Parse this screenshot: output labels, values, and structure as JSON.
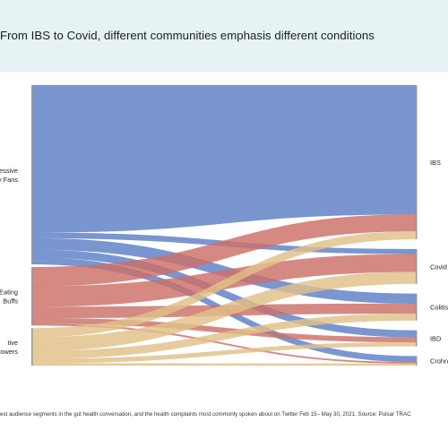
{
  "header": {
    "title": "From IBS to Covid, different communities emphasis different conditions"
  },
  "caption": "est audience segments in the gut health conversation, and the health complaints most commonly spoken about on Twitter Feb 15– May 30, 2021. Source: Pulsar TRAC",
  "colors": {
    "header_bg": "#e6f2f4",
    "node": "#9a9a9a",
    "source_colors": [
      "#5b7fc6",
      "#cc6f68",
      "#e0c088"
    ]
  },
  "chart_data": {
    "type": "sankey",
    "sources": [
      {
        "id": "s1",
        "label_lines": [
          "ressive",
          "ry Fans"
        ]
      },
      {
        "id": "s2",
        "label_lines": [
          "Eating",
          "Buffs"
        ]
      },
      {
        "id": "s3",
        "label_lines": [
          "tive",
          "owers"
        ]
      }
    ],
    "targets": [
      {
        "id": "t1",
        "label": "IBS"
      },
      {
        "id": "t2",
        "label": "Covid"
      },
      {
        "id": "t3",
        "label": "Colitis"
      },
      {
        "id": "t4",
        "label": "IBD"
      },
      {
        "id": "t5",
        "label": "Crohn"
      }
    ],
    "flows": [
      {
        "source": "s1",
        "target": "t1",
        "value": 130
      },
      {
        "source": "s1",
        "target": "t2",
        "value": 5
      },
      {
        "source": "s1",
        "target": "t3",
        "value": 10
      },
      {
        "source": "s1",
        "target": "t4",
        "value": 7
      },
      {
        "source": "s1",
        "target": "t5",
        "value": 6
      },
      {
        "source": "s2",
        "target": "t1",
        "value": 17
      },
      {
        "source": "s2",
        "target": "t2",
        "value": 18
      },
      {
        "source": "s2",
        "target": "t3",
        "value": 10
      },
      {
        "source": "s2",
        "target": "t4",
        "value": 5
      },
      {
        "source": "s2",
        "target": "t5",
        "value": 1.5
      },
      {
        "source": "s3",
        "target": "t1",
        "value": 8
      },
      {
        "source": "s3",
        "target": "t2",
        "value": 12
      },
      {
        "source": "s3",
        "target": "t3",
        "value": 7
      },
      {
        "source": "s3",
        "target": "t4",
        "value": 4
      },
      {
        "source": "s3",
        "target": "t5",
        "value": 2
      }
    ]
  }
}
